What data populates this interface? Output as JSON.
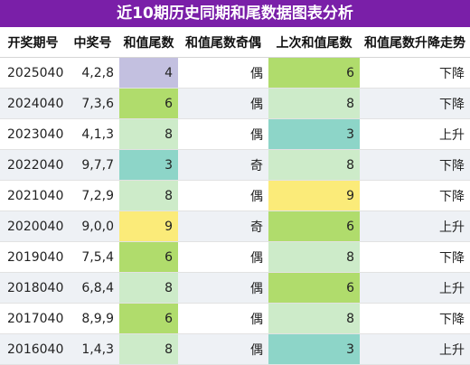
{
  "title": "近10期历史同期和尾数据图表分析",
  "headers": [
    "开奖期号",
    "中奖号",
    "和值尾数",
    "和值尾数奇偶",
    "上次和值尾数",
    "和值尾数升降走势"
  ],
  "colors": {
    "title_bg": "#7a1fa8",
    "tail_colors": {
      "3": "#8dd5c8",
      "4": "#c3c0e0",
      "6": "#b0dc6c",
      "8": "#cdebc9",
      "9": "#fbeb79"
    }
  },
  "rows": [
    {
      "issue": "2025040",
      "nums": "4,2,8",
      "tail": "4",
      "parity": "偶",
      "prev": "6",
      "trend": "下降"
    },
    {
      "issue": "2024040",
      "nums": "7,3,6",
      "tail": "6",
      "parity": "偶",
      "prev": "8",
      "trend": "下降"
    },
    {
      "issue": "2023040",
      "nums": "4,1,3",
      "tail": "8",
      "parity": "偶",
      "prev": "3",
      "trend": "上升"
    },
    {
      "issue": "2022040",
      "nums": "9,7,7",
      "tail": "3",
      "parity": "奇",
      "prev": "8",
      "trend": "下降"
    },
    {
      "issue": "2021040",
      "nums": "7,2,9",
      "tail": "8",
      "parity": "偶",
      "prev": "9",
      "trend": "下降"
    },
    {
      "issue": "2020040",
      "nums": "9,0,0",
      "tail": "9",
      "parity": "奇",
      "prev": "6",
      "trend": "上升"
    },
    {
      "issue": "2019040",
      "nums": "7,5,4",
      "tail": "6",
      "parity": "偶",
      "prev": "8",
      "trend": "下降"
    },
    {
      "issue": "2018040",
      "nums": "6,8,4",
      "tail": "8",
      "parity": "偶",
      "prev": "6",
      "trend": "上升"
    },
    {
      "issue": "2017040",
      "nums": "8,9,9",
      "tail": "6",
      "parity": "偶",
      "prev": "8",
      "trend": "下降"
    },
    {
      "issue": "2016040",
      "nums": "1,4,3",
      "tail": "8",
      "parity": "偶",
      "prev": "3",
      "trend": "上升"
    }
  ]
}
